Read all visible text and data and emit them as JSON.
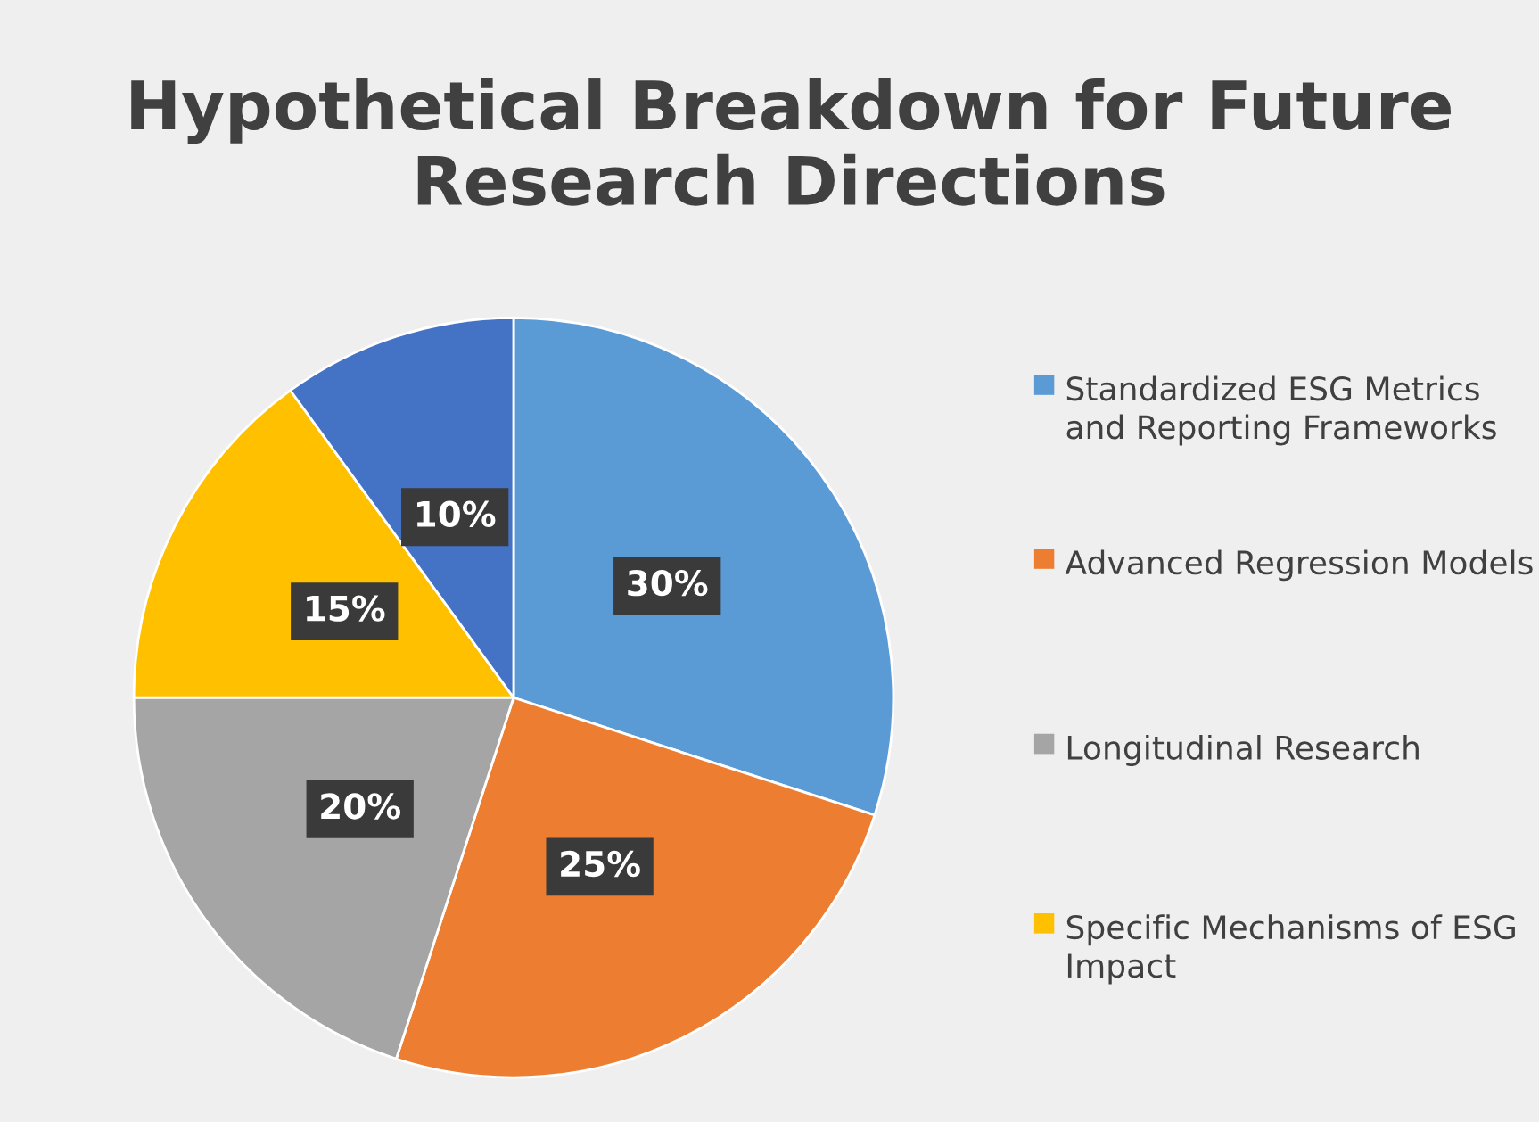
{
  "chart_data": {
    "type": "pie",
    "title": "Hypothetical Breakdown for Future Research Directions",
    "categories": [
      "Standardized ESG Metrics and Reporting Frameworks",
      "Advanced Regression Models",
      "Longitudinal Research",
      "Specific Mechanisms of ESG Impact",
      null
    ],
    "values": [
      30,
      25,
      20,
      15,
      10
    ],
    "colors": [
      "#5b9bd5",
      "#ed7d31",
      "#a5a5a5",
      "#ffc000",
      "#4472c4"
    ],
    "value_labels": [
      "30%",
      "25%",
      "20%",
      "15%",
      "10%"
    ],
    "legend": "right"
  }
}
